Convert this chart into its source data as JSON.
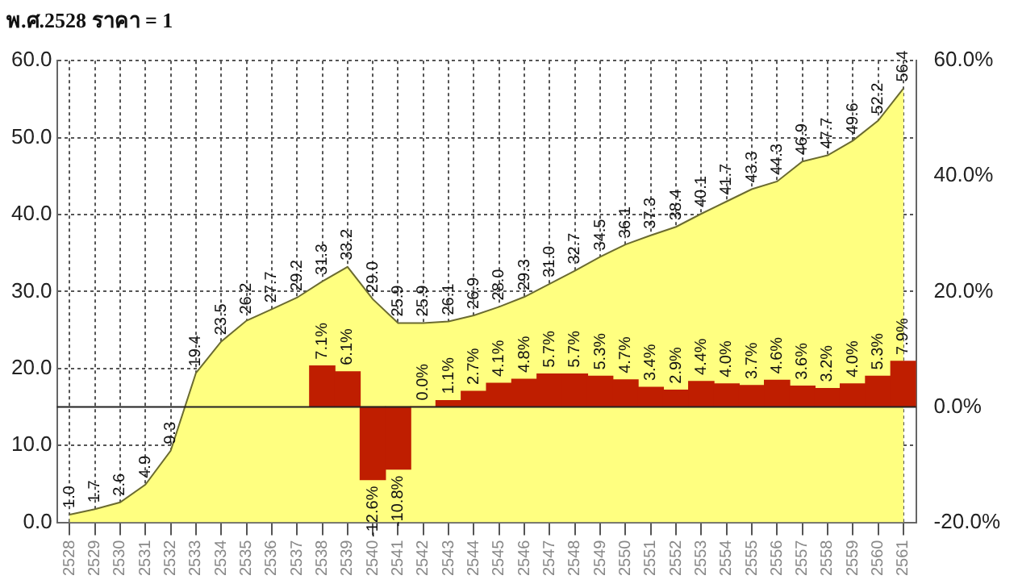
{
  "chart_data": {
    "type": "area",
    "title": "พ.ศ.2528 ราคา = 1",
    "categories": [
      "2528",
      "2529",
      "2530",
      "2531",
      "2532",
      "2533",
      "2534",
      "2535",
      "2536",
      "2537",
      "2538",
      "2539",
      "2540",
      "2541",
      "2542",
      "2543",
      "2544",
      "2545",
      "2546",
      "2547",
      "2548",
      "2549",
      "2550",
      "2551",
      "2552",
      "2553",
      "2554",
      "2555",
      "2556",
      "2557",
      "2558",
      "2559",
      "2560",
      "2561"
    ],
    "series": [
      {
        "color": "#ffff80",
        "values": [
          1.0,
          1.7,
          2.6,
          4.9,
          9.3,
          19.4,
          23.5,
          26.2,
          27.7,
          29.2,
          31.3,
          33.2,
          29.0,
          25.9,
          25.9,
          26.1,
          26.9,
          28.0,
          29.3,
          31.0,
          32.7,
          34.5,
          36.1,
          37.3,
          38.4,
          40.1,
          41.7,
          43.3,
          44.3,
          46.9,
          47.7,
          49.6,
          52.2,
          56.4
        ],
        "value_labels": [
          "1.0",
          "1.7",
          "2.6",
          "4.9",
          "9.3",
          "19.4",
          "23.5",
          "26.2",
          "27.7",
          "29.2",
          "31.3",
          "33.2",
          "29.0",
          "25.9",
          "25.9",
          "26.1",
          "26.9",
          "28.0",
          "29.3",
          "31.0",
          "32.7",
          "34.5",
          "36.1",
          "37.3",
          "38.4",
          "40.1",
          "41.7",
          "43.3",
          "44.3",
          "46.9",
          "47.7",
          "49.6",
          "52.2",
          "56.4"
        ]
      },
      {
        "type": "bar",
        "axis": "y2",
        "color": "#bf1e00",
        "values": [
          null,
          null,
          null,
          null,
          null,
          null,
          null,
          null,
          null,
          null,
          7.1,
          6.1,
          -12.6,
          -10.8,
          0.0,
          1.1,
          2.7,
          4.1,
          4.8,
          5.7,
          5.7,
          5.3,
          4.7,
          3.4,
          2.9,
          4.4,
          4.0,
          3.7,
          4.6,
          3.6,
          3.2,
          4.0,
          5.3,
          7.9
        ],
        "value_labels": [
          null,
          null,
          null,
          null,
          null,
          null,
          null,
          null,
          null,
          null,
          "7.1%",
          "6.1%",
          "-12.6%",
          "-10.8%",
          "0.0%",
          "1.1%",
          "2.7%",
          "4.1%",
          "4.8%",
          "5.7%",
          "5.7%",
          "5.3%",
          "4.7%",
          "3.4%",
          "2.9%",
          "4.4%",
          "4.0%",
          "3.7%",
          "4.6%",
          "3.6%",
          "3.2%",
          "4.0%",
          "5.3%",
          "7.9%"
        ]
      }
    ],
    "ylim": [
      0,
      60
    ],
    "yticks": [
      {
        "value": 0,
        "label": "0.0"
      },
      {
        "value": 10,
        "label": "10.0"
      },
      {
        "value": 20,
        "label": "20.0"
      },
      {
        "value": 30,
        "label": "30.0"
      },
      {
        "value": 40,
        "label": "40.0"
      },
      {
        "value": 50,
        "label": "50.0"
      },
      {
        "value": 60,
        "label": "60.0"
      }
    ],
    "y2lim": [
      -20,
      60
    ],
    "y2ticks": [
      {
        "value": -20,
        "label": "-20.0%"
      },
      {
        "value": 0,
        "label": "0.0%"
      },
      {
        "value": 20,
        "label": "20.0%"
      },
      {
        "value": 40,
        "label": "40.0%"
      },
      {
        "value": 60,
        "label": "60.0%"
      }
    ],
    "grid": true,
    "ref_lines": [
      {
        "axis": "y2",
        "value": 0
      }
    ]
  }
}
